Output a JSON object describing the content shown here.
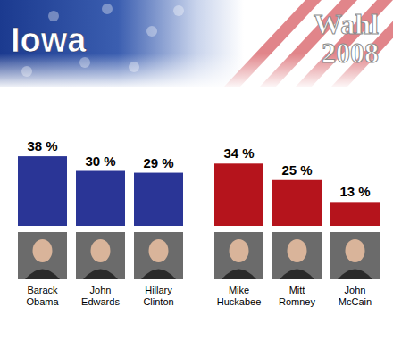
{
  "chart_data": {
    "type": "bar",
    "title": "Iowa",
    "annotations": [
      "Wahl",
      "2008"
    ],
    "categories": [
      "Barack Obama",
      "John Edwards",
      "Hillary Clinton",
      "Mike Huckabee",
      "Mitt Romney",
      "John McCain"
    ],
    "values": [
      38,
      30,
      29,
      34,
      25,
      13
    ],
    "value_labels": [
      "38 %",
      "30 %",
      "29 %",
      "34 %",
      "25 %",
      "13 %"
    ],
    "colors": [
      "#2a3596",
      "#2a3596",
      "#2a3596",
      "#b5141c",
      "#b5141c",
      "#b5141c"
    ],
    "ylim": [
      0,
      40
    ],
    "data_labels": true,
    "tick_labels": false,
    "grid": false
  }
}
